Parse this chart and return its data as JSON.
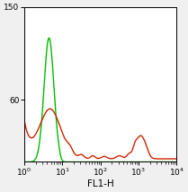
{
  "title": "",
  "xlabel": "FL1-H",
  "ylabel": "",
  "xlim_log": [
    0,
    4
  ],
  "ylim": [
    0,
    150
  ],
  "yticks": [
    60,
    150
  ],
  "background_color": "#f0f0f0",
  "plot_bg_color": "#ffffff",
  "green_color": "#00bb00",
  "red_color": "#cc2200",
  "linewidth": 1.0,
  "figsize": [
    2.09,
    2.14
  ],
  "dpi": 100
}
